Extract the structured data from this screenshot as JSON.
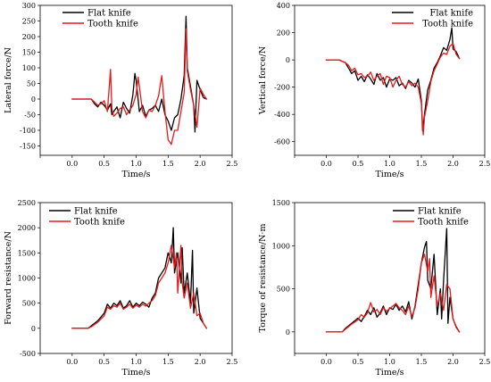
{
  "chart_data": [
    {
      "type": "line",
      "xlabel": "Time/s",
      "ylabel": "Lateral force/N",
      "xlim": [
        -0.5,
        2.5
      ],
      "ylim": [
        -180,
        300
      ],
      "xticks": [
        -0.5,
        0.0,
        0.5,
        1.0,
        1.5,
        2.0,
        2.5
      ],
      "xtick_labels": [
        "",
        "0.0",
        "0.5",
        "1.0",
        "1.5",
        "2.0",
        "2.5"
      ],
      "yticks": [
        -150,
        -100,
        -50,
        0,
        50,
        100,
        150,
        200,
        250,
        300
      ],
      "ytick_labels": [
        "-150",
        "-100",
        "-50",
        "0",
        "50",
        "100",
        "150",
        "200",
        "250",
        "300"
      ],
      "grid": false,
      "legend_position": "top-left",
      "series": [
        {
          "name": "Flat knife",
          "color": "#000000",
          "x": [
            0.0,
            0.3,
            0.35,
            0.4,
            0.45,
            0.5,
            0.55,
            0.6,
            0.62,
            0.65,
            0.7,
            0.75,
            0.8,
            0.85,
            0.9,
            0.95,
            0.98,
            1.0,
            1.05,
            1.1,
            1.15,
            1.2,
            1.25,
            1.3,
            1.35,
            1.4,
            1.45,
            1.5,
            1.55,
            1.6,
            1.65,
            1.7,
            1.75,
            1.78,
            1.8,
            1.85,
            1.9,
            1.92,
            1.95,
            2.0,
            2.05,
            2.1
          ],
          "y": [
            0,
            0,
            -15,
            -25,
            -10,
            -20,
            -35,
            -15,
            -50,
            -40,
            -25,
            -60,
            -10,
            -30,
            -45,
            15,
            82,
            60,
            -40,
            -20,
            -55,
            -35,
            -30,
            -20,
            -40,
            0,
            -50,
            -70,
            -100,
            -60,
            -50,
            0,
            75,
            265,
            100,
            40,
            -20,
            -105,
            60,
            30,
            5,
            0
          ]
        },
        {
          "name": "Tooth knife",
          "color": "#e8191b",
          "x": [
            0.0,
            0.3,
            0.35,
            0.4,
            0.45,
            0.5,
            0.55,
            0.6,
            0.62,
            0.65,
            0.7,
            0.75,
            0.8,
            0.85,
            0.9,
            0.95,
            1.0,
            1.03,
            1.05,
            1.1,
            1.15,
            1.2,
            1.25,
            1.3,
            1.35,
            1.4,
            1.45,
            1.5,
            1.55,
            1.6,
            1.65,
            1.7,
            1.75,
            1.78,
            1.8,
            1.85,
            1.9,
            1.95,
            2.0,
            2.05,
            2.1
          ],
          "y": [
            0,
            0,
            -10,
            -20,
            -15,
            -5,
            -40,
            95,
            -30,
            -55,
            -45,
            -30,
            -25,
            -50,
            -35,
            -20,
            15,
            70,
            40,
            -40,
            -60,
            -35,
            -40,
            -20,
            10,
            75,
            -40,
            -130,
            -145,
            -100,
            -100,
            -40,
            20,
            225,
            90,
            30,
            -20,
            -90,
            35,
            15,
            0
          ]
        }
      ]
    },
    {
      "type": "line",
      "xlabel": "Time/s",
      "ylabel": "Vertical force/N",
      "xlim": [
        -0.5,
        2.5
      ],
      "ylim": [
        -700,
        400
      ],
      "xticks": [
        -0.5,
        0.0,
        0.5,
        1.0,
        1.5,
        2.0,
        2.5
      ],
      "xtick_labels": [
        "",
        "0.0",
        "0.5",
        "1.0",
        "1.5",
        "2.0",
        "2.5"
      ],
      "yticks": [
        -600,
        -400,
        -200,
        0,
        200,
        400
      ],
      "ytick_labels": [
        "-600",
        "-400",
        "-200",
        "0",
        "200",
        "400"
      ],
      "grid": false,
      "legend_position": "top-right",
      "series": [
        {
          "name": "Flat knife",
          "color": "#000000",
          "x": [
            0.0,
            0.2,
            0.3,
            0.35,
            0.4,
            0.45,
            0.5,
            0.55,
            0.6,
            0.65,
            0.7,
            0.75,
            0.8,
            0.85,
            0.9,
            0.95,
            1.0,
            1.05,
            1.1,
            1.15,
            1.2,
            1.25,
            1.3,
            1.35,
            1.4,
            1.45,
            1.5,
            1.52,
            1.55,
            1.6,
            1.65,
            1.7,
            1.75,
            1.8,
            1.85,
            1.9,
            1.95,
            1.98,
            2.0,
            2.05,
            2.1
          ],
          "y": [
            0,
            0,
            -20,
            -60,
            -100,
            -80,
            -150,
            -120,
            -160,
            -110,
            -140,
            -180,
            -100,
            -150,
            -130,
            -200,
            -140,
            -150,
            -130,
            -190,
            -170,
            -210,
            -150,
            -170,
            -200,
            -140,
            -300,
            -520,
            -400,
            -220,
            -150,
            -60,
            -20,
            30,
            90,
            70,
            150,
            235,
            80,
            60,
            10
          ]
        },
        {
          "name": "Tooth knife",
          "color": "#e8191b",
          "x": [
            0.0,
            0.2,
            0.3,
            0.35,
            0.4,
            0.45,
            0.5,
            0.55,
            0.6,
            0.65,
            0.7,
            0.75,
            0.8,
            0.85,
            0.9,
            0.95,
            1.0,
            1.05,
            1.1,
            1.15,
            1.2,
            1.25,
            1.3,
            1.35,
            1.4,
            1.45,
            1.5,
            1.53,
            1.55,
            1.6,
            1.65,
            1.7,
            1.75,
            1.8,
            1.85,
            1.9,
            1.95,
            2.0,
            2.05,
            2.1
          ],
          "y": [
            0,
            0,
            -20,
            -40,
            -80,
            -60,
            -110,
            -100,
            -130,
            -120,
            -90,
            -150,
            -120,
            -100,
            -180,
            -120,
            -130,
            -200,
            -150,
            -120,
            -180,
            -200,
            -160,
            -190,
            -170,
            -200,
            -320,
            -550,
            -420,
            -300,
            -160,
            -80,
            -30,
            20,
            50,
            40,
            100,
            120,
            40,
            10
          ]
        }
      ]
    },
    {
      "type": "line",
      "xlabel": "Time/s",
      "ylabel": "Forward resistance/N",
      "xlim": [
        -0.5,
        2.5
      ],
      "ylim": [
        -500,
        2500
      ],
      "xticks": [
        -0.5,
        0.0,
        0.5,
        1.0,
        1.5,
        2.0,
        2.5
      ],
      "xtick_labels": [
        "",
        "0.0",
        "0.5",
        "1.0",
        "1.5",
        "2.0",
        "2.5"
      ],
      "yticks": [
        -500,
        0,
        500,
        1000,
        1500,
        2000,
        2500
      ],
      "ytick_labels": [
        "-500",
        "0",
        "500",
        "1000",
        "1500",
        "2000",
        "2500"
      ],
      "grid": false,
      "legend_position": "top-left",
      "series": [
        {
          "name": "Flat knife",
          "color": "#000000",
          "x": [
            0.0,
            0.25,
            0.3,
            0.4,
            0.5,
            0.55,
            0.6,
            0.65,
            0.7,
            0.75,
            0.8,
            0.85,
            0.9,
            0.95,
            1.0,
            1.05,
            1.1,
            1.15,
            1.2,
            1.25,
            1.3,
            1.35,
            1.4,
            1.45,
            1.5,
            1.55,
            1.58,
            1.6,
            1.65,
            1.7,
            1.72,
            1.75,
            1.8,
            1.85,
            1.88,
            1.9,
            1.95,
            2.0,
            2.05,
            2.1
          ],
          "y": [
            0,
            0,
            50,
            150,
            300,
            480,
            400,
            500,
            450,
            550,
            400,
            450,
            550,
            420,
            500,
            450,
            520,
            480,
            420,
            600,
            700,
            1000,
            1100,
            1200,
            1500,
            1300,
            2000,
            1100,
            1500,
            900,
            1600,
            700,
            1100,
            500,
            1550,
            300,
            800,
            200,
            100,
            0
          ]
        },
        {
          "name": "Tooth knife",
          "color": "#e8191b",
          "x": [
            0.0,
            0.25,
            0.3,
            0.4,
            0.5,
            0.55,
            0.6,
            0.65,
            0.7,
            0.75,
            0.8,
            0.85,
            0.9,
            0.95,
            1.0,
            1.05,
            1.1,
            1.15,
            1.2,
            1.25,
            1.3,
            1.35,
            1.4,
            1.45,
            1.5,
            1.55,
            1.6,
            1.63,
            1.65,
            1.7,
            1.72,
            1.75,
            1.8,
            1.85,
            1.9,
            1.95,
            2.0,
            2.05,
            2.1
          ],
          "y": [
            0,
            0,
            30,
            120,
            250,
            420,
            380,
            450,
            420,
            500,
            380,
            420,
            480,
            400,
            460,
            420,
            480,
            440,
            500,
            550,
            650,
            900,
            1000,
            1100,
            1300,
            1650,
            1200,
            1500,
            700,
            1650,
            900,
            600,
            900,
            400,
            700,
            250,
            300,
            100,
            0
          ]
        }
      ]
    },
    {
      "type": "line",
      "xlabel": "Time/s",
      "ylabel": "Torque of resistance/N·m",
      "xlim": [
        -0.5,
        2.5
      ],
      "ylim": [
        -250,
        1500
      ],
      "xticks": [
        -0.5,
        0.0,
        0.5,
        1.0,
        1.5,
        2.0,
        2.5
      ],
      "xtick_labels": [
        "",
        "0.0",
        "0.5",
        "1.0",
        "1.5",
        "2.0",
        "2.5"
      ],
      "yticks": [
        0,
        500,
        1000,
        1500
      ],
      "ytick_labels": [
        "0",
        "500",
        "1000",
        "1500"
      ],
      "grid": false,
      "legend_position": "top-right",
      "series": [
        {
          "name": "Flat knife",
          "color": "#000000",
          "x": [
            0.0,
            0.25,
            0.3,
            0.4,
            0.5,
            0.55,
            0.6,
            0.65,
            0.7,
            0.75,
            0.8,
            0.85,
            0.9,
            0.95,
            1.0,
            1.05,
            1.1,
            1.15,
            1.2,
            1.25,
            1.3,
            1.35,
            1.4,
            1.45,
            1.5,
            1.55,
            1.58,
            1.6,
            1.65,
            1.7,
            1.75,
            1.8,
            1.82,
            1.85,
            1.9,
            1.92,
            1.95,
            2.0,
            2.05,
            2.1
          ],
          "y": [
            0,
            0,
            40,
            100,
            160,
            120,
            180,
            250,
            200,
            280,
            170,
            220,
            300,
            200,
            280,
            260,
            320,
            250,
            300,
            230,
            350,
            150,
            300,
            550,
            800,
            980,
            1050,
            600,
            500,
            900,
            200,
            500,
            150,
            600,
            1200,
            100,
            400,
            150,
            60,
            0
          ]
        },
        {
          "name": "Tooth knife",
          "color": "#e8191b",
          "x": [
            0.0,
            0.25,
            0.3,
            0.4,
            0.5,
            0.55,
            0.6,
            0.65,
            0.7,
            0.75,
            0.8,
            0.85,
            0.9,
            0.95,
            1.0,
            1.05,
            1.1,
            1.15,
            1.2,
            1.25,
            1.3,
            1.35,
            1.4,
            1.45,
            1.5,
            1.55,
            1.6,
            1.63,
            1.65,
            1.7,
            1.75,
            1.8,
            1.85,
            1.9,
            1.95,
            2.0,
            2.05,
            2.1
          ],
          "y": [
            0,
            0,
            30,
            90,
            140,
            200,
            170,
            220,
            340,
            230,
            260,
            200,
            280,
            240,
            270,
            300,
            330,
            280,
            250,
            200,
            300,
            180,
            280,
            500,
            800,
            900,
            700,
            850,
            400,
            650,
            300,
            450,
            250,
            550,
            500,
            150,
            50,
            0
          ]
        }
      ]
    }
  ]
}
